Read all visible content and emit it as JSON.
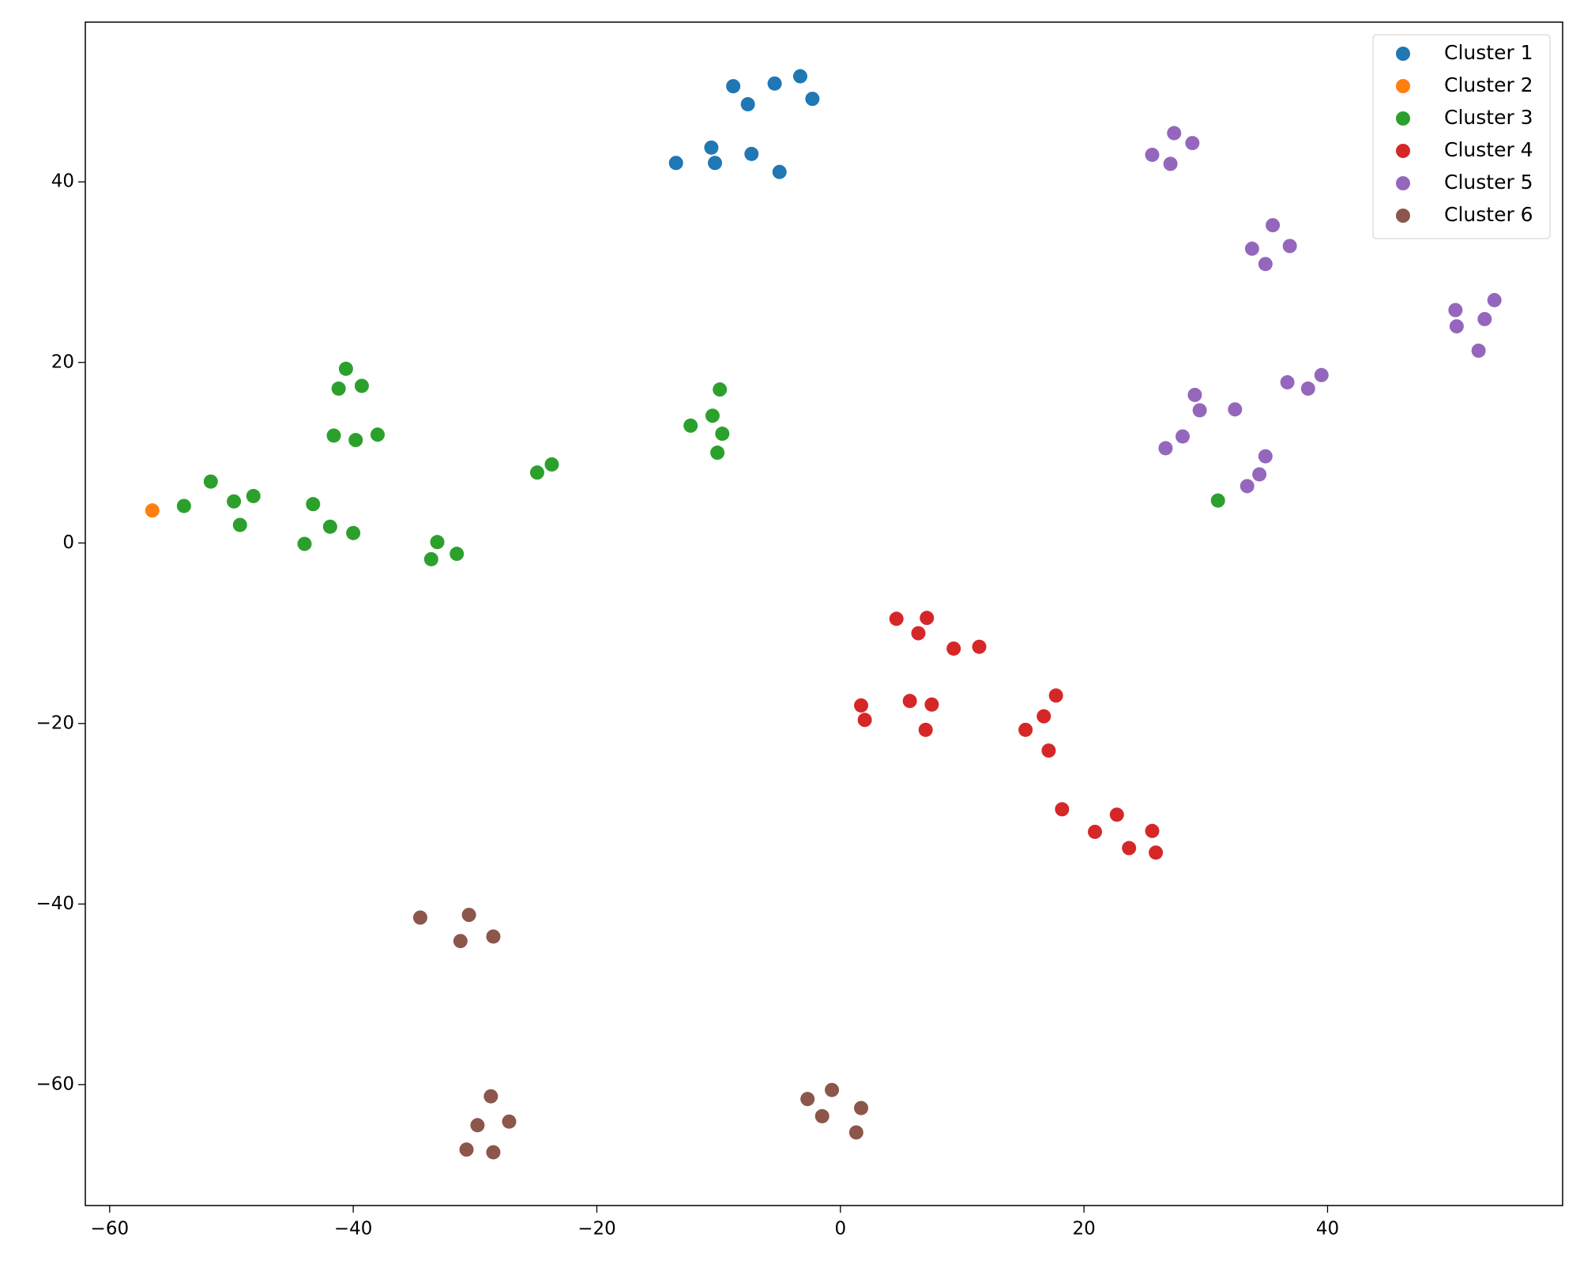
{
  "chart_data": {
    "type": "scatter",
    "legend": "upper right",
    "grid": false,
    "xlim": [
      -62,
      59.3
    ],
    "ylim": [
      -73.4,
      57.7
    ],
    "xticks": [
      {
        "value": -60,
        "label": "−60"
      },
      {
        "value": -40,
        "label": "−40"
      },
      {
        "value": -20,
        "label": "−20"
      },
      0,
      20,
      40
    ],
    "yticks": [
      {
        "value": -60,
        "label": "−60"
      },
      {
        "value": -40,
        "label": "−40"
      },
      {
        "value": -20,
        "label": "−20"
      },
      0,
      20,
      40
    ],
    "series": [
      {
        "name": "Cluster 1",
        "color": "#1f77b4",
        "x": [
          -8.8,
          -5.4,
          -3.3,
          -7.6,
          -2.3,
          -10.6,
          -13.5,
          -10.3,
          -7.3,
          -5.0
        ],
        "y": [
          50.6,
          50.9,
          51.7,
          48.6,
          49.2,
          43.8,
          42.1,
          42.1,
          43.1,
          41.1
        ]
      },
      {
        "name": "Cluster 2",
        "color": "#ff7f0e",
        "x": [
          -56.5
        ],
        "y": [
          3.6
        ]
      },
      {
        "name": "Cluster 3",
        "color": "#2ca02c",
        "x": [
          -40.6,
          -41.2,
          -39.3,
          -41.6,
          -39.8,
          -38.0,
          -51.7,
          -53.9,
          -49.8,
          -48.2,
          -49.3,
          -43.3,
          -44.0,
          -41.9,
          -40.0,
          -33.1,
          -33.6,
          -31.5,
          -24.9,
          -23.7,
          -9.9,
          -12.3,
          -10.5,
          -9.7,
          -10.1,
          31.0
        ],
        "y": [
          19.3,
          17.1,
          17.4,
          11.9,
          11.4,
          12.0,
          6.8,
          4.1,
          4.6,
          5.2,
          2.0,
          4.3,
          -0.1,
          1.8,
          1.1,
          0.1,
          -1.8,
          -1.2,
          7.8,
          8.7,
          17.0,
          13.0,
          14.1,
          12.1,
          10.0,
          4.7
        ]
      },
      {
        "name": "Cluster 4",
        "color": "#d62728",
        "x": [
          4.6,
          7.1,
          6.4,
          9.3,
          11.4,
          1.7,
          2.0,
          5.7,
          7.5,
          7.0,
          17.7,
          16.7,
          15.2,
          17.1,
          18.2,
          22.7,
          20.9,
          25.6,
          23.7,
          25.9
        ],
        "y": [
          -8.4,
          -8.3,
          -10.0,
          -11.7,
          -11.5,
          -18.0,
          -19.6,
          -17.5,
          -17.9,
          -20.7,
          -16.9,
          -19.2,
          -20.7,
          -23.0,
          -29.5,
          -30.1,
          -32.0,
          -31.9,
          -33.8,
          -34.3
        ]
      },
      {
        "name": "Cluster 5",
        "color": "#9467bd",
        "x": [
          27.4,
          28.9,
          25.6,
          27.1,
          35.5,
          33.8,
          36.9,
          34.9,
          53.7,
          50.5,
          52.9,
          50.6,
          52.4,
          29.1,
          29.5,
          32.4,
          36.7,
          38.4,
          39.5,
          26.7,
          28.1,
          34.9,
          34.4,
          33.4
        ],
        "y": [
          45.4,
          44.3,
          43.0,
          42.0,
          35.2,
          32.6,
          32.9,
          30.9,
          26.9,
          25.8,
          24.8,
          24.0,
          21.3,
          16.4,
          14.7,
          14.8,
          17.8,
          17.1,
          18.6,
          10.5,
          11.8,
          9.6,
          7.6,
          6.3
        ]
      },
      {
        "name": "Cluster 6",
        "color": "#8c564b",
        "x": [
          -34.5,
          -30.5,
          -31.2,
          -28.5,
          -28.7,
          -29.8,
          -27.2,
          -30.7,
          -28.5,
          -2.7,
          -0.7,
          1.7,
          -1.5,
          1.3
        ],
        "y": [
          -41.5,
          -41.2,
          -44.1,
          -43.6,
          -61.3,
          -64.5,
          -64.1,
          -67.2,
          -67.5,
          -61.6,
          -60.6,
          -62.6,
          -63.5,
          -65.3
        ]
      }
    ]
  }
}
